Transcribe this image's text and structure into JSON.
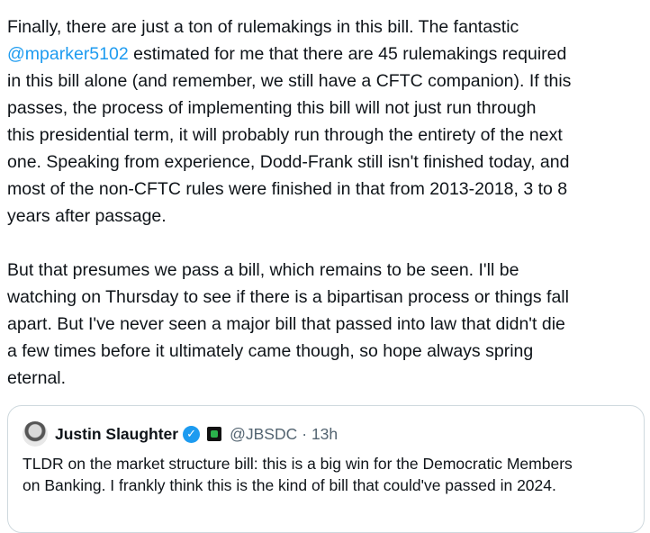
{
  "post": {
    "lines_before_mention": "Finally, there are just a ton of rulemakings in this bill. The fantastic",
    "mention": "@mparker5102",
    "mention_rest": " estimated for me that there are 45 rulemakings required",
    "lines": [
      "in this bill alone (and remember, we still have a CFTC companion). If this",
      "passes, the process of implementing this bill will not just run through",
      "this presidential term, it will probably run through the entirety of the next",
      "one. Speaking from experience, Dodd-Frank still isn't finished today, and",
      "most of the non-CFTC rules were finished in that from 2013-2018, 3 to 8",
      "years after passage."
    ],
    "lines2": [
      "But that presumes we pass a bill, which remains to be seen. I'll be",
      "watching on Thursday to see if there is a bipartisan process or things fall",
      "apart. But I've never seen a major bill that passed into law that didn't die",
      "a few times before it ultimately came though, so hope always spring",
      "eternal."
    ]
  },
  "quote": {
    "name": "Justin Slaughter",
    "handle": "@JBSDC",
    "time": "· 13h",
    "verified_color": "#1d9bf0",
    "lines": [
      "TLDR on the market structure bill: this is a big win for the Democratic Members",
      "on Banking. I frankly think this is the kind of bill that could've passed in 2024."
    ]
  }
}
